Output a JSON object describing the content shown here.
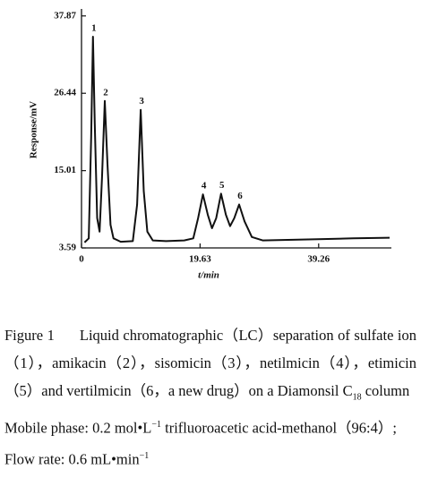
{
  "chart_data": {
    "type": "line",
    "y_label": "Response/mV",
    "x_label": "t/min",
    "x": [
      0.5,
      1.2,
      1.6,
      1.9,
      2.2,
      2.6,
      3.0,
      3.4,
      3.85,
      4.3,
      4.8,
      5.3,
      6.5,
      8.5,
      9.2,
      9.8,
      10.3,
      10.9,
      11.8,
      14,
      17,
      18.5,
      19.3,
      20.1,
      20.9,
      21.6,
      22.3,
      23.1,
      23.9,
      24.6,
      25.3,
      26.1,
      27.0,
      28.2,
      30,
      35,
      40,
      45,
      51
    ],
    "series": [
      {
        "color": "#111111",
        "values": [
          4.4,
          5,
          20,
          34.8,
          22,
          8,
          6,
          14,
          25.3,
          16,
          7,
          5,
          4.5,
          4.6,
          10,
          24.0,
          12,
          6,
          4.7,
          4.6,
          4.7,
          5,
          8,
          11.5,
          8.5,
          6.5,
          8,
          11.6,
          8.5,
          6.8,
          8,
          10.0,
          7.5,
          5.2,
          4.7,
          4.8,
          4.9,
          5.0,
          5.1
        ]
      }
    ],
    "peak_labels": [
      "1",
      "2",
      "3",
      "4",
      "5",
      "6"
    ],
    "xlim": [
      0,
      51.3
    ],
    "ylim": [
      3.59,
      38.9
    ],
    "xticks": [
      0,
      19.63,
      39.26
    ],
    "yticks": [
      3.59,
      15.01,
      26.44,
      37.87
    ]
  },
  "caption": {
    "label": "Figure 1",
    "text": "Liquid chromatographic（LC）separation of sulfate ion（1），amikacin（2），sisomicin（3），netilmicin（4），etimicin（5）and vertilmicin（6，a new drug）on a Diamonsil C",
    "subscript": "18",
    "text_end": " column",
    "mobile_phase": "Mobile phase: 0.2 mol•L",
    "mobile_phase_sup": "−1",
    "mobile_phase_end": " trifluoroacetic acid-methanol（96:4）; Flow rate: 0.6 mL•min",
    "flow_sup": "−1"
  }
}
